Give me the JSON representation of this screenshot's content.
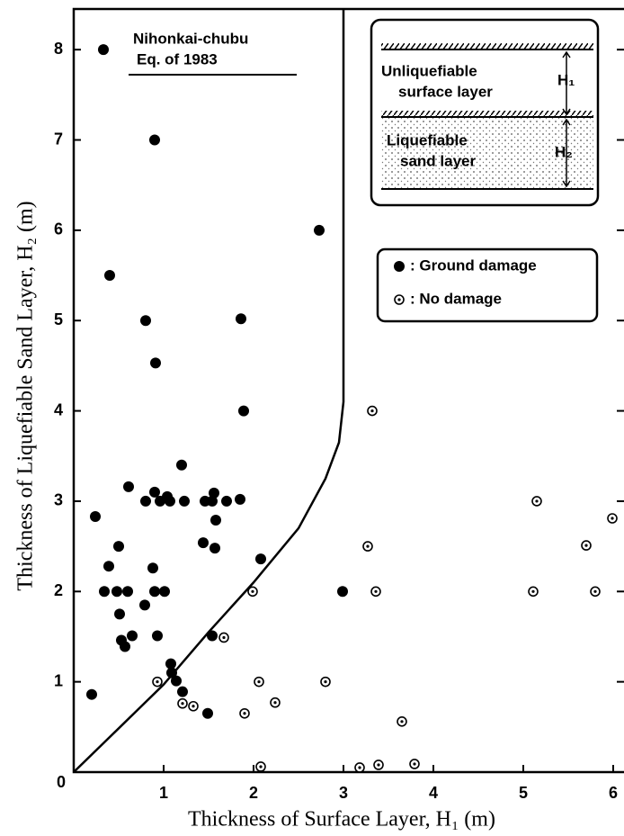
{
  "chart_data": {
    "type": "scatter",
    "xlabel": "Thickness of Surface Layer, H₁ (m)",
    "ylabel": "Thickness of Liquefiable Sand Layer, H₂ (m)",
    "annotations": [
      "Nihonkai-chubu",
      "Eq. of 1983"
    ],
    "inset_labels": [
      "Unliquefiable",
      "surface layer",
      "H₁",
      "Liquefiable",
      "sand layer",
      "H₂"
    ],
    "xlim": [
      0,
      6.12
    ],
    "ylim": [
      0,
      8.45
    ],
    "xticks": [
      0,
      1,
      2,
      3,
      4,
      5,
      6
    ],
    "yticks": [
      1,
      2,
      3,
      4,
      5,
      6,
      7,
      8
    ],
    "grid": false,
    "boundary": {
      "color": "#000000",
      "x": [
        0,
        1,
        1.5,
        2,
        2.5,
        2.8,
        2.95,
        3,
        3
      ],
      "y": [
        0,
        0.97,
        1.55,
        2.1,
        2.7,
        3.25,
        3.65,
        4.1,
        8.45
      ]
    },
    "series": [
      {
        "name": ": Ground damage",
        "color": "#000000",
        "marker": "filled",
        "x": [
          0.33,
          0.9,
          0.4,
          0.8,
          0.91,
          1.86,
          2.73,
          1.89,
          1.2,
          0.61,
          0.24,
          0.8,
          0.9,
          0.96,
          1.04,
          1.07,
          1.23,
          1.46,
          1.54,
          1.56,
          1.58,
          1.7,
          1.85,
          1.44,
          1.57,
          2.08,
          0.5,
          0.39,
          0.34,
          0.48,
          0.6,
          0.88,
          0.9,
          1.01,
          0.79,
          0.51,
          0.53,
          0.57,
          0.65,
          0.93,
          1.54,
          1.08,
          1.09,
          1.14,
          1.21,
          1.49,
          0.2,
          2.99
        ],
        "values": [
          8.0,
          7.0,
          5.5,
          5.0,
          4.53,
          5.02,
          6.0,
          4.0,
          3.4,
          3.16,
          2.83,
          3.0,
          3.1,
          3.0,
          3.05,
          3.0,
          3.0,
          3.0,
          3.0,
          3.09,
          2.79,
          3.0,
          3.02,
          2.54,
          2.48,
          2.36,
          2.5,
          2.28,
          2.0,
          2.0,
          2.0,
          2.26,
          2.0,
          2.0,
          1.85,
          1.75,
          1.46,
          1.39,
          1.51,
          1.51,
          1.51,
          1.2,
          1.1,
          1.01,
          0.89,
          0.65,
          0.86,
          2.0
        ]
      },
      {
        "name": ": No damage",
        "color": "#000000",
        "marker": "open",
        "x": [
          3.32,
          5.15,
          5.99,
          3.27,
          5.7,
          3.36,
          5.11,
          5.8,
          1.99,
          1.67,
          0.93,
          2.06,
          2.8,
          1.21,
          1.33,
          2.24,
          1.9,
          3.65,
          2.08,
          3.18,
          3.39,
          3.79
        ],
        "values": [
          4.0,
          3.0,
          2.81,
          2.5,
          2.51,
          2.0,
          2.0,
          2.0,
          2.0,
          1.49,
          1.0,
          1.0,
          1.0,
          0.76,
          0.73,
          0.77,
          0.65,
          0.56,
          0.06,
          0.05,
          0.08,
          0.09
        ]
      }
    ]
  }
}
